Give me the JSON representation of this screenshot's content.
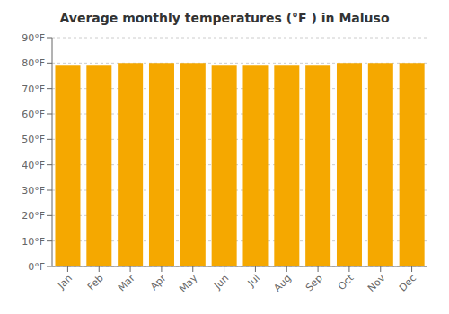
{
  "chart_data": {
    "type": "bar",
    "title": "Average monthly temperatures (°F ) in Maluso",
    "categories": [
      "Jan",
      "Feb",
      "Mar",
      "Apr",
      "May",
      "Jun",
      "Jul",
      "Aug",
      "Sep",
      "Oct",
      "Nov",
      "Dec"
    ],
    "values": [
      79,
      79,
      80,
      80,
      80,
      79,
      79,
      79,
      79,
      80,
      80,
      80
    ],
    "color": "#F5A800",
    "ylim": [
      0,
      90
    ],
    "yticks": [
      {
        "value": 0,
        "label": "0°F"
      },
      {
        "value": 10,
        "label": "10°F"
      },
      {
        "value": 20,
        "label": "20°F"
      },
      {
        "value": 30,
        "label": "30°F"
      },
      {
        "value": 40,
        "label": "40°F"
      },
      {
        "value": 50,
        "label": "50°F"
      },
      {
        "value": 60,
        "label": "60°F"
      },
      {
        "value": 70,
        "label": "70°F"
      },
      {
        "value": 80,
        "label": "80°F"
      },
      {
        "value": 90,
        "label": "90°F"
      }
    ],
    "grid": true
  }
}
